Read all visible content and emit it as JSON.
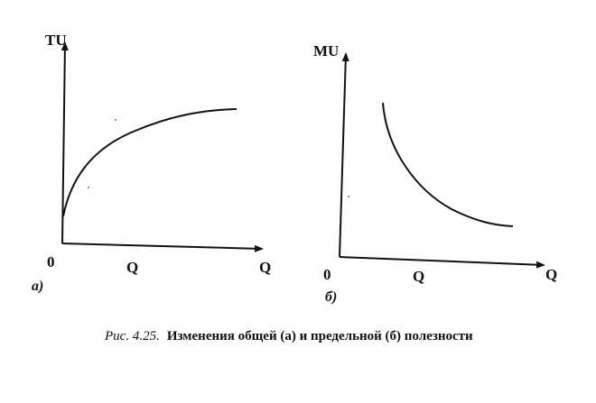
{
  "panel_a": {
    "y_label": "TU",
    "x_label": "Q",
    "origin": "0",
    "x_axis_mid": "Q",
    "part_label": "а)"
  },
  "panel_b": {
    "y_label": "MU",
    "x_label": "Q",
    "origin": "0",
    "x_axis_mid": "Q",
    "part_label": "б)"
  },
  "caption": {
    "figure_ref": "Рис. 4.25.",
    "text": "Изменения общей (а) и предельной (б) полезности"
  },
  "colors": {
    "ink": "#111111",
    "background": "#ffffff"
  }
}
